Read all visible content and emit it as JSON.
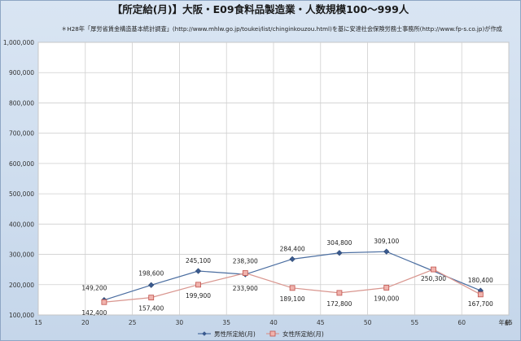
{
  "chart_data": {
    "type": "line",
    "title": "【所定給(月)】大阪・E09食料品製造業・人数規模100～999人",
    "subtitle": "＊H28年「厚労省賃金構造基本統計調査」(http://www.mhlw.go.jp/toukei/list/chinginkouzou.html)を基に安達社会保険労務士事務所(http://www.fp-s.co.jp)が作成",
    "xlabel": "年齢",
    "ylabel": "",
    "xlim": [
      15,
      65
    ],
    "ylim": [
      100000,
      1000000
    ],
    "x_ticks": [
      "15",
      "20",
      "25",
      "30",
      "35",
      "40",
      "45",
      "50",
      "55",
      "60",
      "65"
    ],
    "y_ticks": [
      "100,000",
      "200,000",
      "300,000",
      "400,000",
      "500,000",
      "600,000",
      "700,000",
      "800,000",
      "900,000",
      "1,000,000"
    ],
    "grid": true,
    "legend": "bottom",
    "series": [
      {
        "name": "男性所定給(月)",
        "color": "#4a6da0",
        "marker": "diamond",
        "x": [
          22,
          27,
          32,
          37,
          42,
          47,
          52,
          62
        ],
        "values": [
          149200,
          198600,
          245100,
          233900,
          284400,
          304800,
          309100,
          180400
        ],
        "labels": [
          "149,200",
          "198,600",
          "245,100",
          "233,900",
          "284,400",
          "304,800",
          "309,100",
          "180,400"
        ]
      },
      {
        "name": "女性所定給(月)",
        "color": "#d9968f",
        "marker": "square",
        "x": [
          22,
          27,
          32,
          37,
          42,
          47,
          52,
          57,
          62
        ],
        "values": [
          142400,
          157400,
          199900,
          238300,
          189100,
          172800,
          190000,
          250300,
          167700
        ],
        "labels": [
          "142,400",
          "157,400",
          "199,900",
          "238,300",
          "189,100",
          "172,800",
          "190,000",
          "250,300",
          "167,700"
        ]
      }
    ]
  }
}
